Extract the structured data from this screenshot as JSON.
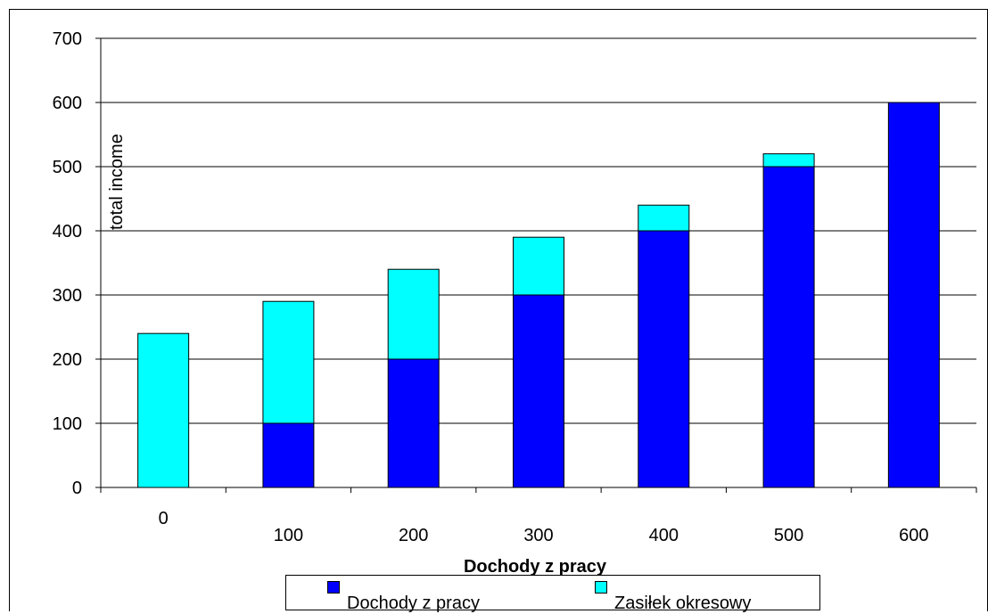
{
  "chart_data": {
    "type": "bar",
    "stacked": true,
    "categories": [
      "0",
      "100",
      "200",
      "300",
      "400",
      "500",
      "600"
    ],
    "series": [
      {
        "name": "Dochody z pracy",
        "color": "#0000ff",
        "values": [
          0,
          100,
          200,
          300,
          400,
          500,
          600
        ]
      },
      {
        "name": "Zasiłek okresowy",
        "color": "#00ffff",
        "values": [
          240,
          190,
          140,
          90,
          40,
          20,
          0
        ]
      }
    ],
    "title": "",
    "xlabel": "Dochody z pracy",
    "ylabel": "total income",
    "ylim": [
      0,
      700
    ],
    "yticks": [
      "0",
      "100",
      "200",
      "300",
      "400",
      "500",
      "600",
      "700"
    ],
    "grid": true,
    "legend": "bottom"
  }
}
